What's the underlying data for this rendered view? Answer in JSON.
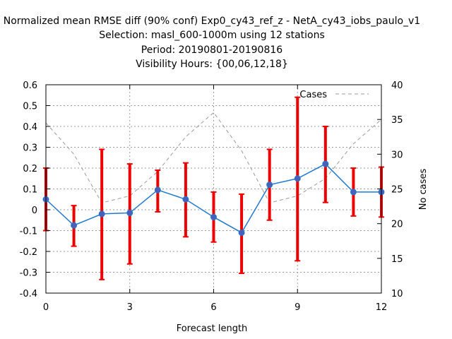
{
  "chart_data": {
    "type": "line",
    "title_lines": [
      "Normalized mean RMSE diff (90% conf) Exp0_cy43_ref_z - NetA_cy43_iobs_paulo_v1",
      "Selection: masl_600-1000m using    12 stations",
      "Period: 20190801-20190816",
      "Visibility   Hours: {00,06,12,18}"
    ],
    "xlabel": "Forecast length",
    "ylabel": "",
    "y2label": "No cases",
    "xlim": [
      0,
      12
    ],
    "ylim": [
      -0.4,
      0.6
    ],
    "y2lim": [
      10,
      40
    ],
    "x_ticks": [
      0,
      3,
      6,
      9,
      12
    ],
    "y_ticks": [
      -0.4,
      -0.3,
      -0.2,
      -0.1,
      0,
      0.1,
      0.2,
      0.3,
      0.4,
      0.5,
      0.6
    ],
    "y2_ticks": [
      10,
      15,
      20,
      25,
      30,
      35,
      40
    ],
    "y_tick_labels": [
      "-0.4",
      "-0.3",
      "-0.2",
      "-0.1",
      "0",
      "0.1",
      "0.2",
      "0.3",
      "0.4",
      "0.5",
      "0.6"
    ],
    "grid": true,
    "legend_position": "top-right",
    "colors": {
      "series": "#1f78d0",
      "marker": "#4a5fb8",
      "errorbar": "#ee0000",
      "cases": "#999999",
      "grid": "#9a9a9a"
    },
    "series": [
      {
        "x": [
          0,
          1,
          2,
          3,
          4,
          5,
          6,
          7,
          8,
          9,
          10,
          11,
          12
        ],
        "values": [
          0.05,
          -0.075,
          -0.02,
          -0.015,
          0.095,
          0.05,
          -0.035,
          -0.11,
          0.12,
          0.15,
          0.22,
          0.085,
          0.085
        ],
        "lower": [
          -0.1,
          -0.175,
          -0.335,
          -0.26,
          -0.01,
          -0.13,
          -0.155,
          -0.305,
          -0.05,
          -0.245,
          0.035,
          -0.03,
          -0.035
        ],
        "upper": [
          0.2,
          0.02,
          0.29,
          0.22,
          0.19,
          0.225,
          0.085,
          0.075,
          0.29,
          0.54,
          0.4,
          0.2,
          0.205
        ]
      },
      {
        "name": "Cases",
        "axis": "right",
        "x": [
          0,
          1,
          2,
          3,
          4,
          5,
          6,
          7,
          8,
          9,
          10,
          11,
          12
        ],
        "values": [
          34.5,
          30,
          23,
          24,
          27.5,
          32.5,
          36,
          30.5,
          23,
          24,
          26.5,
          31.5,
          35
        ]
      }
    ]
  }
}
